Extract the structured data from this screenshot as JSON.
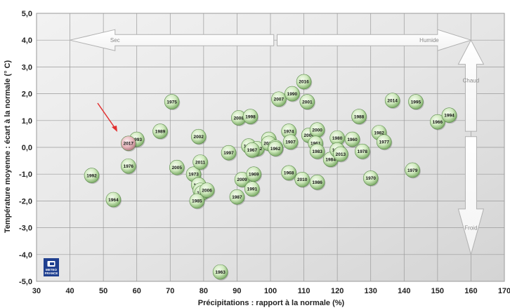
{
  "chart_data": {
    "type": "scatter",
    "xlabel": "Précipitations : rapport à la normale (%)",
    "ylabel": "Température moyenne : écart à la normale (° C)",
    "xlim": [
      30,
      170
    ],
    "ylim": [
      -5,
      5
    ],
    "xticks": [
      "30",
      "40",
      "50",
      "60",
      "70",
      "80",
      "90",
      "100",
      "110",
      "120",
      "130",
      "140",
      "150",
      "160",
      "170"
    ],
    "yticks": [
      "5,0",
      "4,0",
      "3,0",
      "2,0",
      "1,0",
      "0,0",
      "-1,0",
      "-2,0",
      "-3,0",
      "-4,0",
      "-5,0"
    ],
    "grid": true,
    "annotations": {
      "dry": "Sec",
      "wet": "Humide",
      "warm": "Chaud",
      "cold": "Froid"
    },
    "highlight": {
      "label": "2017",
      "x": 57.5,
      "y": 0.15,
      "color": "#e8b4b8"
    },
    "points": [
      {
        "label": "1992",
        "x": 46.5,
        "y": -1.05
      },
      {
        "label": "1964",
        "x": 53,
        "y": -1.95
      },
      {
        "label": "1976",
        "x": 57.5,
        "y": -0.7
      },
      {
        "label": "1993",
        "x": 60,
        "y": 0.3
      },
      {
        "label": "1989",
        "x": 67,
        "y": 0.6
      },
      {
        "label": "1975",
        "x": 70.5,
        "y": 1.7
      },
      {
        "label": "2005",
        "x": 72,
        "y": -0.75
      },
      {
        "label": "1973",
        "x": 77,
        "y": -1.0
      },
      {
        "label": "2002",
        "x": 78.5,
        "y": 0.4
      },
      {
        "label": "2011",
        "x": 79,
        "y": -0.55
      },
      {
        "label": "1971",
        "x": 78.5,
        "y": -1.4
      },
      {
        "label": "1953",
        "x": 79,
        "y": -1.6
      },
      {
        "label": "1965",
        "x": 79.5,
        "y": -1.7
      },
      {
        "label": "2006",
        "x": 81,
        "y": -1.6
      },
      {
        "label": "1985",
        "x": 78,
        "y": -2.0
      },
      {
        "label": "1963",
        "x": 85,
        "y": -4.65
      },
      {
        "label": "1997",
        "x": 87.5,
        "y": -0.2
      },
      {
        "label": "2008",
        "x": 90.5,
        "y": 1.1
      },
      {
        "label": "1998",
        "x": 94,
        "y": 1.15
      },
      {
        "label": "2009",
        "x": 91.5,
        "y": -1.2
      },
      {
        "label": "1969",
        "x": 95,
        "y": -1.0
      },
      {
        "label": "1991",
        "x": 94.5,
        "y": -1.55
      },
      {
        "label": "1987",
        "x": 90,
        "y": -1.85
      },
      {
        "label": "1972",
        "x": 93.5,
        "y": 0.05
      },
      {
        "label": "2012",
        "x": 96,
        "y": -0.05
      },
      {
        "label": "1967",
        "x": 94.5,
        "y": -0.1
      },
      {
        "label": "1999",
        "x": 99.5,
        "y": 0.3
      },
      {
        "label": "2015",
        "x": 99.5,
        "y": 0.15
      },
      {
        "label": "2003",
        "x": 101.5,
        "y": 0.0
      },
      {
        "label": "1962",
        "x": 101.5,
        "y": -0.05
      },
      {
        "label": "2007",
        "x": 102.5,
        "y": 1.8
      },
      {
        "label": "1974",
        "x": 105.5,
        "y": 0.6
      },
      {
        "label": "1907",
        "x": 106,
        "y": 0.2
      },
      {
        "label": "1990",
        "x": 106.5,
        "y": 2.0
      },
      {
        "label": "1968",
        "x": 105.5,
        "y": -0.95
      },
      {
        "label": "2016",
        "x": 110,
        "y": 2.45
      },
      {
        "label": "2001",
        "x": 111,
        "y": 1.7
      },
      {
        "label": "2004",
        "x": 111.5,
        "y": 0.45
      },
      {
        "label": "2000",
        "x": 114,
        "y": 0.65
      },
      {
        "label": "1961",
        "x": 113.5,
        "y": 0.15
      },
      {
        "label": "1983",
        "x": 114,
        "y": -0.15
      },
      {
        "label": "2010",
        "x": 109.5,
        "y": -1.2
      },
      {
        "label": "1986",
        "x": 114,
        "y": -1.3
      },
      {
        "label": "1984",
        "x": 118,
        "y": -0.45
      },
      {
        "label": "1980",
        "x": 120,
        "y": 0.35
      },
      {
        "label": "1996",
        "x": 120,
        "y": -0.1
      },
      {
        "label": "2013",
        "x": 121,
        "y": -0.25
      },
      {
        "label": "1960",
        "x": 124.5,
        "y": 0.3
      },
      {
        "label": "1988",
        "x": 126.5,
        "y": 1.15
      },
      {
        "label": "1978",
        "x": 127.5,
        "y": -0.15
      },
      {
        "label": "1970",
        "x": 130,
        "y": -1.15
      },
      {
        "label": "1982",
        "x": 132.5,
        "y": 0.55
      },
      {
        "label": "1977",
        "x": 134,
        "y": 0.2
      },
      {
        "label": "2014",
        "x": 136.5,
        "y": 1.75
      },
      {
        "label": "1995",
        "x": 143.5,
        "y": 1.7
      },
      {
        "label": "1979",
        "x": 142.5,
        "y": -0.85
      },
      {
        "label": "1966",
        "x": 150,
        "y": 0.95
      },
      {
        "label": "1994",
        "x": 153.5,
        "y": 1.2
      }
    ]
  },
  "logo": {
    "line1": "METEO",
    "line2": "FRANCE"
  }
}
